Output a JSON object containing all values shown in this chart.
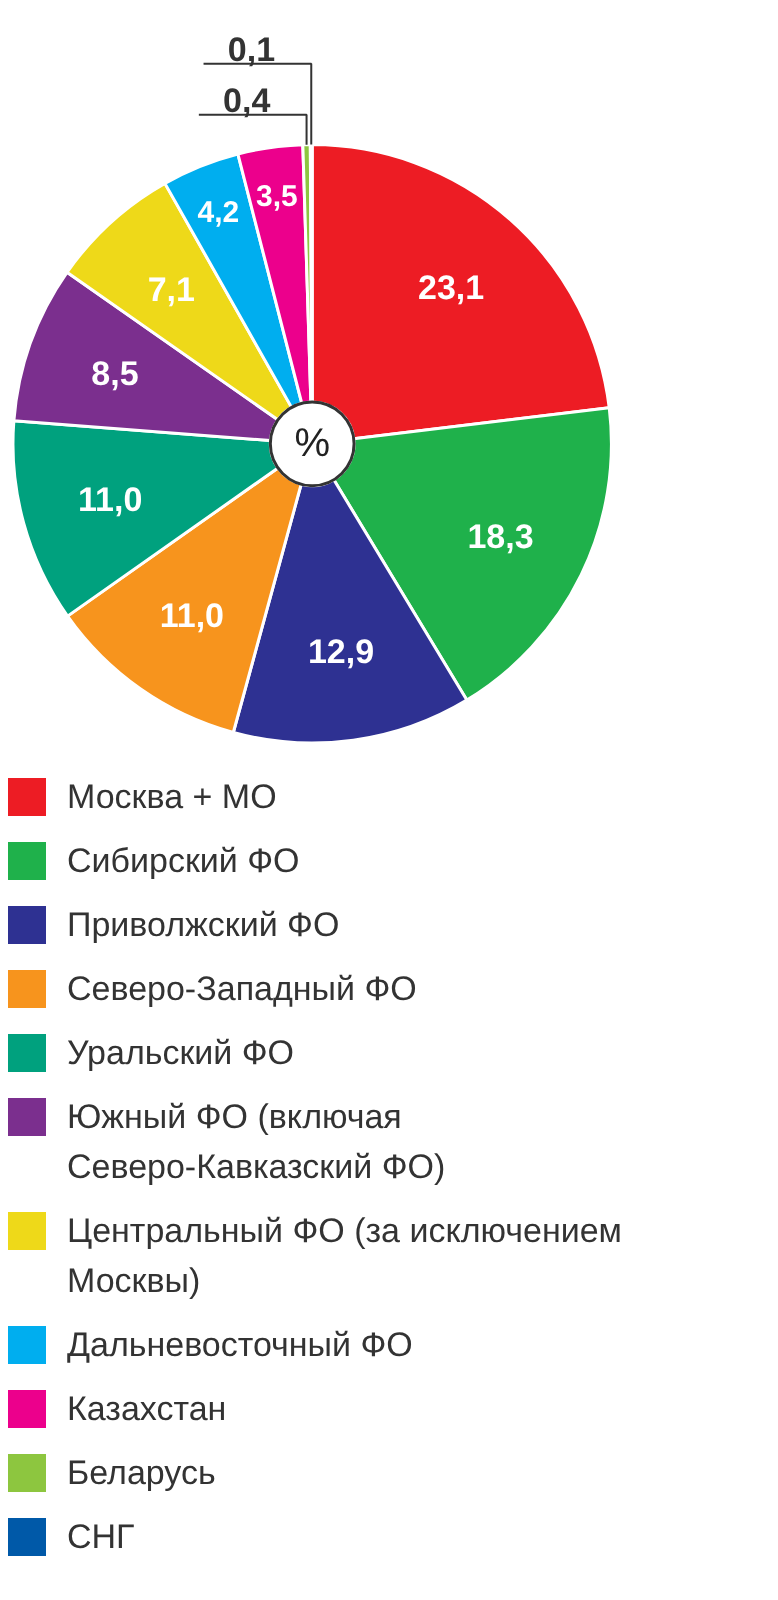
{
  "chart_data": {
    "type": "donut",
    "categories": [
      "Москва + МО",
      "Сибирский ФО",
      "Приволжский ФО",
      "Северо-Западный ФО",
      "Уральский ФО",
      "Южный ФО (включая Северо-Кавказский ФО)",
      "Центральный ФО (за исключением Москвы)",
      "Дальневосточный ФО",
      "Казахстан",
      "Беларусь",
      "СНГ"
    ],
    "values": [
      23.1,
      18.3,
      12.9,
      11.0,
      11.0,
      8.5,
      7.1,
      4.2,
      3.5,
      0.4,
      0.1
    ],
    "value_labels": [
      "23,1",
      "18,3",
      "12,9",
      "11,0",
      "11,0",
      "8,5",
      "7,1",
      "4,2",
      "3,5",
      "0,4",
      "0,1"
    ],
    "colors": [
      "#ed1c24",
      "#1fb14b",
      "#2e3192",
      "#f7941d",
      "#00a17e",
      "#7b2f8e",
      "#eed919",
      "#00aeef",
      "#ec008c",
      "#8dc63f",
      "#0059a8"
    ],
    "annotations": [
      "%"
    ],
    "legend": "bottom"
  }
}
